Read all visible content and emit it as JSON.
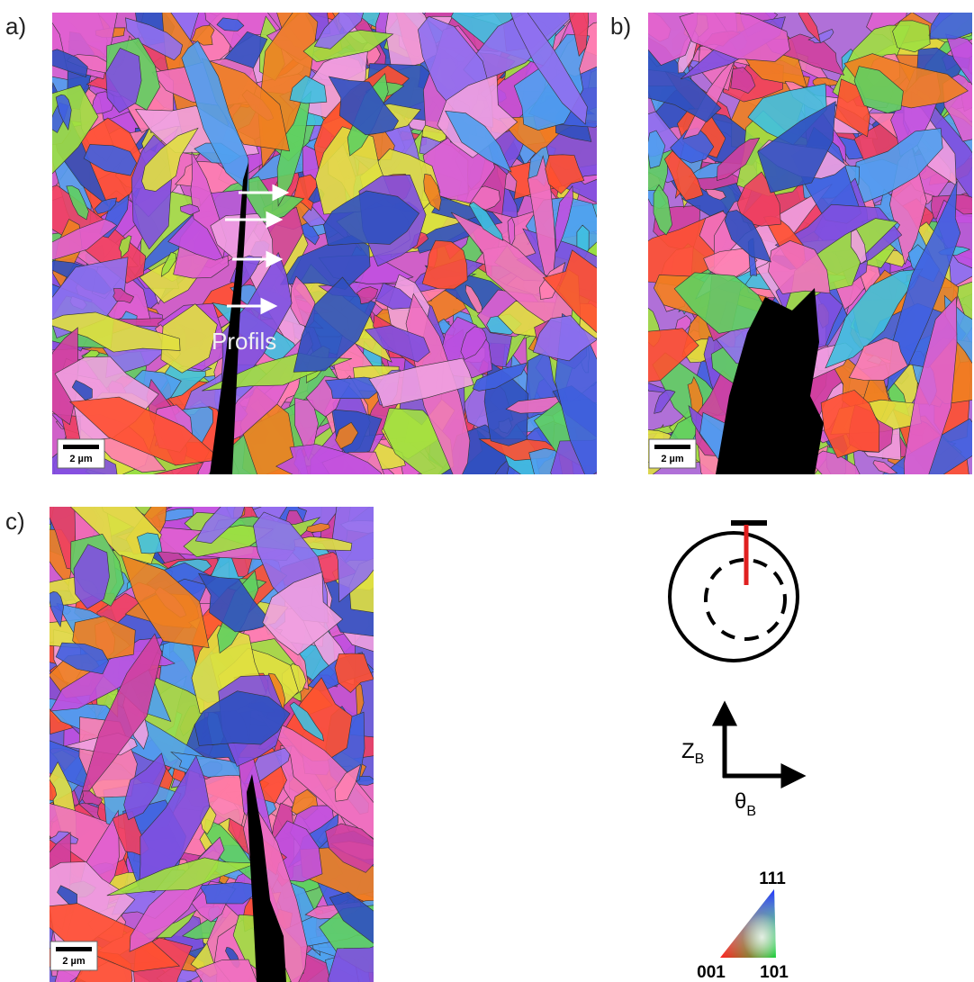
{
  "figure": {
    "panels": [
      {
        "label": "a)",
        "scale_bar": "2 µm",
        "annotation": "Profils"
      },
      {
        "label": "b)",
        "scale_bar": "2 µm"
      },
      {
        "label": "c)",
        "scale_bar": "2 µm"
      }
    ],
    "axes": {
      "vertical": {
        "symbol": "Z",
        "subscript": "B"
      },
      "horizontal": {
        "symbol": "θ",
        "subscript": "B"
      }
    },
    "ipf_legend": {
      "top": "111",
      "bottom_left": "001",
      "bottom_right": "101"
    }
  }
}
